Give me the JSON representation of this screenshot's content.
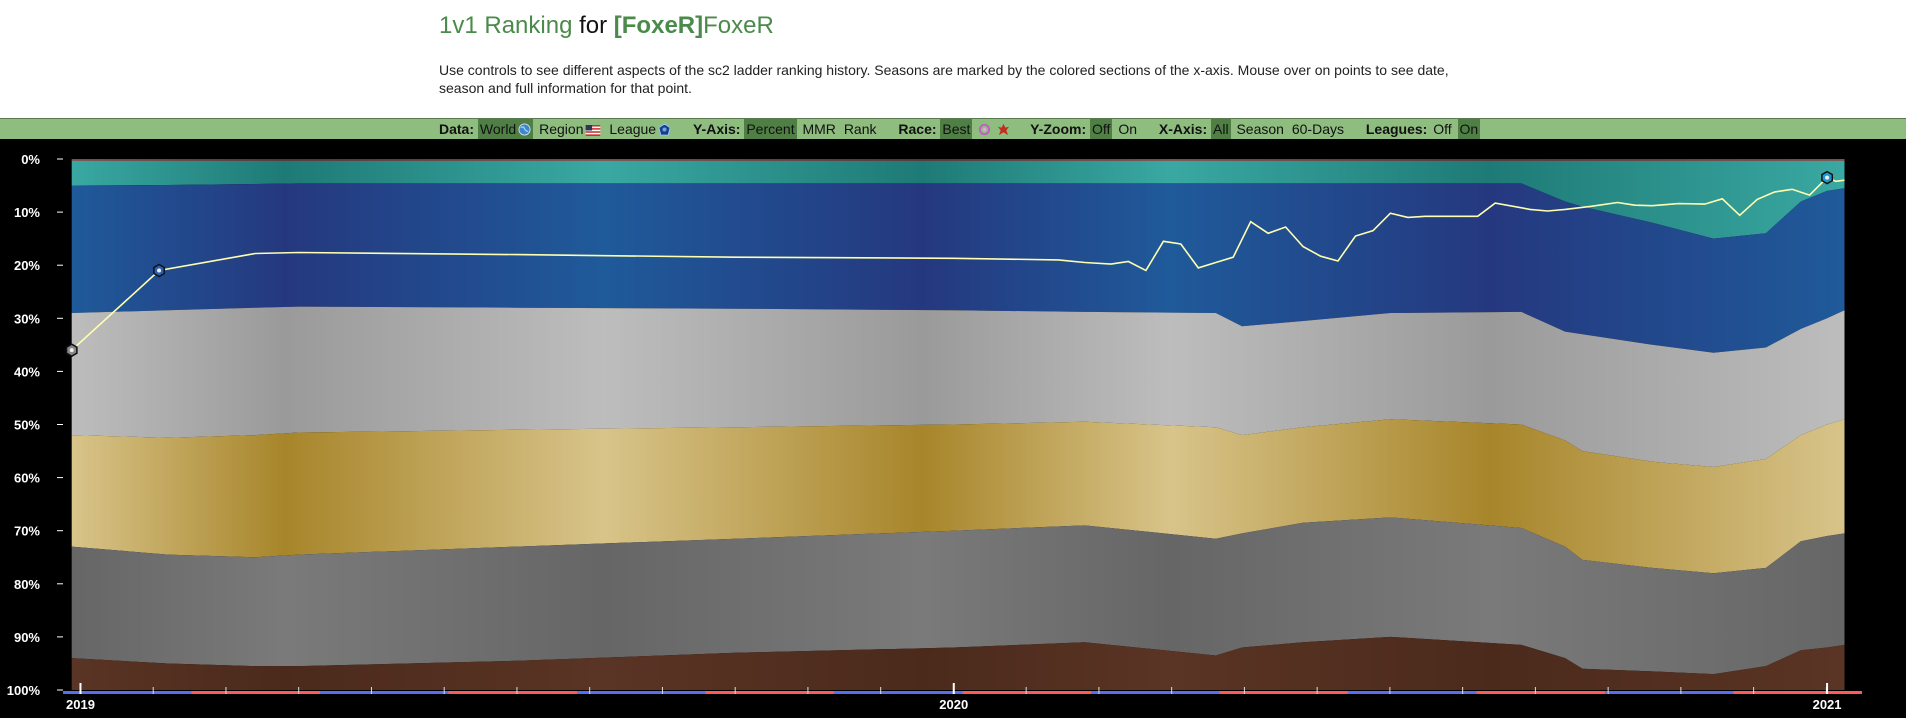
{
  "page": {
    "title_mode": "1v1 Ranking",
    "title_for": "for",
    "title_clan": "[FoxeR]",
    "title_player": "FoxeR",
    "description": "Use controls to see different aspects of the sc2 ladder ranking history. Seasons are marked by the colored sections of the x-axis. Mouse over on points to see date, season and full information for that point."
  },
  "controls": {
    "data": {
      "label": "Data:",
      "options": [
        "World",
        "Region",
        "League"
      ],
      "selected": "World",
      "icons": [
        "globe-icon",
        "us-flag-icon",
        "league-icon"
      ]
    },
    "yaxis": {
      "label": "Y-Axis:",
      "options": [
        "Percent",
        "MMR",
        "Rank"
      ],
      "selected": "Percent"
    },
    "race": {
      "label": "Race:",
      "options": [
        "Best"
      ],
      "selected": "Best",
      "icons": [
        "protoss-icon",
        "zerg-icon"
      ]
    },
    "yzoom": {
      "label": "Y-Zoom:",
      "options": [
        "Off",
        "On"
      ],
      "selected": "Off"
    },
    "xaxis": {
      "label": "X-Axis:",
      "options": [
        "All",
        "Season",
        "60-Days"
      ],
      "selected": "All"
    },
    "leagues": {
      "label": "Leagues:",
      "options": [
        "Off",
        "On"
      ],
      "selected": "On"
    }
  },
  "chart_data": {
    "type": "line",
    "title": "",
    "xlabel": "",
    "ylabel": "",
    "y_unit": "percent",
    "y_inverted": true,
    "ylim": [
      0,
      100
    ],
    "y_ticks": [
      "0%",
      "10%",
      "20%",
      "30%",
      "40%",
      "50%",
      "60%",
      "70%",
      "80%",
      "90%",
      "100%"
    ],
    "x_ticks": [
      "2019",
      "2020",
      "2021"
    ],
    "xlim": [
      2018.98,
      2021.04
    ],
    "grid": false,
    "league_band_colors": {
      "grandmaster": "#8a1d1d",
      "master": "#1e7a76",
      "diamond": "#25387f",
      "platinum": "#9a9a9a",
      "gold": "#a7852a",
      "silver": "#7a7a7a",
      "bronze": "#4b2a1c"
    },
    "league_boundaries": {
      "x": [
        2018.99,
        2019.1,
        2019.2,
        2019.25,
        2019.5,
        2019.75,
        2020.0,
        2020.15,
        2020.3,
        2020.33,
        2020.4,
        2020.5,
        2020.65,
        2020.7,
        2020.72,
        2020.8,
        2020.87,
        2020.93,
        2020.97,
        2021.0,
        2021.02
      ],
      "gm_master": [
        0.3,
        0.3,
        0.3,
        0.3,
        0.3,
        0.3,
        0.3,
        0.3,
        0.3,
        0.3,
        0.3,
        0.3,
        0.3,
        0.3,
        0.3,
        0.3,
        0.3,
        0.3,
        0.3,
        0.3,
        0.3
      ],
      "master_diamond": [
        5,
        4.9,
        4.7,
        4.6,
        4.6,
        4.6,
        4.6,
        4.6,
        4.6,
        4.6,
        4.6,
        4.6,
        4.6,
        8,
        9,
        12,
        15,
        14,
        8,
        6,
        5.5
      ],
      "diamond_platinum": [
        29,
        28.5,
        28,
        27.8,
        28,
        28.2,
        28.5,
        28.8,
        29,
        31.5,
        30.5,
        29,
        28.8,
        32.5,
        33,
        35,
        36.5,
        35.5,
        32,
        30,
        28.5
      ],
      "platinum_gold": [
        52,
        52.5,
        52,
        51.5,
        51,
        50.5,
        50,
        49.5,
        50.5,
        52,
        50.5,
        49,
        50,
        53,
        55,
        57,
        58,
        56.5,
        52,
        50,
        49
      ],
      "gold_silver": [
        73,
        74.5,
        75,
        74.5,
        73,
        71.5,
        70,
        69,
        71.5,
        70.5,
        68.5,
        67.5,
        69.5,
        73,
        75.5,
        77,
        78,
        77,
        72,
        71,
        70.5
      ],
      "silver_bronze": [
        94,
        95,
        95.5,
        95.5,
        94.5,
        93,
        92,
        91,
        93.5,
        92,
        91,
        90,
        91.5,
        94,
        96,
        96.5,
        97,
        95.5,
        92.5,
        92,
        91.5
      ]
    },
    "series": [
      {
        "x": [
          2018.99,
          2019.09,
          2019.2,
          2019.25,
          2019.5,
          2019.75,
          2020.0,
          2020.12,
          2020.15,
          2020.18,
          2020.2,
          2020.22,
          2020.24,
          2020.26,
          2020.28,
          2020.3,
          2020.32,
          2020.34,
          2020.36,
          2020.38,
          2020.4,
          2020.42,
          2020.44,
          2020.46,
          2020.48,
          2020.5,
          2020.52,
          2020.54,
          2020.56,
          2020.58,
          2020.6,
          2020.62,
          2020.66,
          2020.68,
          2020.7,
          2020.73,
          2020.76,
          2020.78,
          2020.8,
          2020.83,
          2020.86,
          2020.88,
          2020.9,
          2020.92,
          2020.94,
          2020.96,
          2020.98,
          2021.0,
          2021.01,
          2021.02
        ],
        "y": [
          36,
          21,
          17.8,
          17.6,
          18,
          18.5,
          18.7,
          19,
          19.5,
          19.8,
          19.3,
          21,
          15.5,
          16,
          20.5,
          19.5,
          18.5,
          11.8,
          14,
          12.8,
          16.5,
          18.3,
          19.2,
          14.5,
          13.5,
          10.2,
          11,
          10.8,
          10.8,
          10.8,
          10.8,
          8.3,
          9.5,
          9.8,
          9.5,
          8.9,
          8.2,
          8.7,
          8.8,
          8.4,
          8.5,
          7.5,
          10.6,
          7.6,
          6.2,
          5.7,
          6.8,
          3.5,
          4.2,
          4
        ]
      }
    ],
    "marked_points": [
      {
        "x": 2018.99,
        "y": 36,
        "icon": "silver-league-icon"
      },
      {
        "x": 2019.09,
        "y": 21,
        "icon": "diamond-league-icon"
      },
      {
        "x": 2021.0,
        "y": 3.5,
        "icon": "master-league-icon"
      }
    ],
    "season_bar_colors": [
      "#5c6cf0",
      "#ff5a5a"
    ]
  }
}
